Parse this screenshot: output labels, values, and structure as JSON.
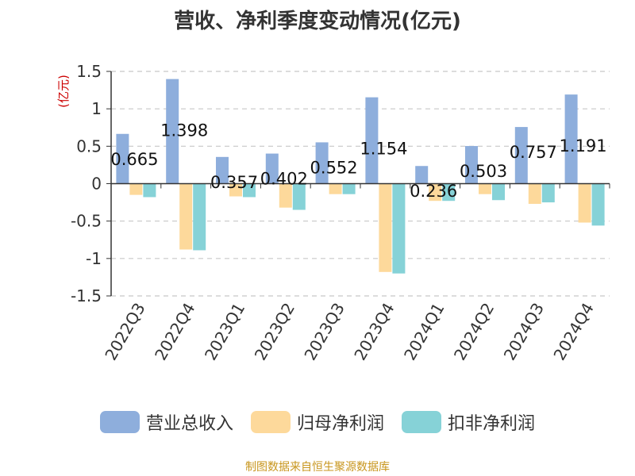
{
  "title": "营收、净利季度变动情况(亿元)",
  "source": "制图数据来自恒生聚源数据库",
  "chart_data": {
    "type": "bar",
    "title": "营收、净利季度变动情况(亿元)",
    "ylabel": "(亿元)",
    "xlabel": "",
    "ylim": [
      -1.5,
      1.5
    ],
    "yticks": [
      -1.5,
      -1,
      -0.5,
      0,
      0.5,
      1,
      1.5
    ],
    "ytick_labels": [
      "-1.5",
      "-1",
      "-0.5",
      "0",
      "0.5",
      "1",
      "1.5"
    ],
    "grid": true,
    "legend_position": "bottom",
    "categories": [
      "2022Q3",
      "2022Q4",
      "2023Q1",
      "2023Q2",
      "2023Q3",
      "2023Q4",
      "2024Q1",
      "2024Q2",
      "2024Q3",
      "2024Q4"
    ],
    "series": [
      {
        "name": "营业总收入",
        "color": "#8eaedc",
        "values": [
          0.665,
          1.398,
          0.357,
          0.402,
          0.552,
          1.154,
          0.236,
          0.503,
          0.757,
          1.191
        ]
      },
      {
        "name": "归母净利润",
        "color": "#fdd99b",
        "values": [
          -0.15,
          -0.88,
          -0.17,
          -0.32,
          -0.14,
          -1.18,
          -0.23,
          -0.14,
          -0.27,
          -0.52
        ]
      },
      {
        "name": "扣非净利润",
        "color": "#86d2d7",
        "values": [
          -0.18,
          -0.89,
          -0.18,
          -0.35,
          -0.14,
          -1.2,
          -0.23,
          -0.22,
          -0.25,
          -0.56
        ]
      }
    ],
    "data_labels": [
      "0.665",
      "1.398",
      "0.357",
      "0.402",
      "0.552",
      "1.154",
      "0.236",
      "0.503",
      "0.757",
      "1.191"
    ]
  }
}
